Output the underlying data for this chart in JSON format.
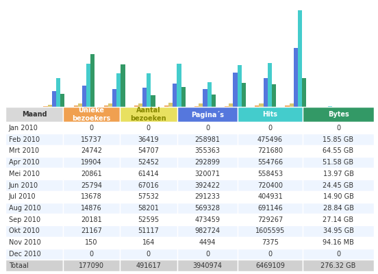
{
  "months_short": [
    "Jan",
    "Feb",
    "Mrt",
    "Apr",
    "Mei",
    "Jun",
    "Jul",
    "Aug",
    "Sep",
    "Okt",
    "Nov",
    "Dec"
  ],
  "unieke_bezoekers": [
    0,
    15737,
    24742,
    19904,
    20861,
    25794,
    13678,
    14876,
    20181,
    21167,
    150,
    0
  ],
  "aantal_bezoeken": [
    0,
    36419,
    54707,
    52452,
    61414,
    67016,
    57532,
    58201,
    52595,
    51117,
    164,
    0
  ],
  "paginas": [
    0,
    258981,
    355363,
    292899,
    320071,
    392422,
    291233,
    569328,
    473459,
    982724,
    4494,
    0
  ],
  "hits": [
    0,
    475496,
    721680,
    554766,
    558453,
    720400,
    404931,
    691146,
    729267,
    1605595,
    7375,
    0
  ],
  "bytes_gb": [
    0,
    15.85,
    64.55,
    51.58,
    13.97,
    24.45,
    14.9,
    28.84,
    27.14,
    34.95,
    0.09416,
    0
  ],
  "bytes_max_gb": 64.55,
  "table_rows": [
    [
      "Jan 2010",
      "0",
      "0",
      "0",
      "0",
      "0"
    ],
    [
      "Feb 2010",
      "15737",
      "36419",
      "258981",
      "475496",
      "15.85 GB"
    ],
    [
      "Mrt 2010",
      "24742",
      "54707",
      "355363",
      "721680",
      "64.55 GB"
    ],
    [
      "Apr 2010",
      "19904",
      "52452",
      "292899",
      "554766",
      "51.58 GB"
    ],
    [
      "Mei 2010",
      "20861",
      "61414",
      "320071",
      "558453",
      "13.97 GB"
    ],
    [
      "Jun 2010",
      "25794",
      "67016",
      "392422",
      "720400",
      "24.45 GB"
    ],
    [
      "Jul 2010",
      "13678",
      "57532",
      "291233",
      "404931",
      "14.90 GB"
    ],
    [
      "Aug 2010",
      "14876",
      "58201",
      "569328",
      "691146",
      "28.84 GB"
    ],
    [
      "Sep 2010",
      "20181",
      "52595",
      "473459",
      "729267",
      "27.14 GB"
    ],
    [
      "Okt 2010",
      "21167",
      "51117",
      "982724",
      "1605595",
      "34.95 GB"
    ],
    [
      "Nov 2010",
      "150",
      "164",
      "4494",
      "7375",
      "94.16 MB"
    ],
    [
      "Dec 2010",
      "0",
      "0",
      "0",
      "0",
      "0"
    ]
  ],
  "totaal_row": [
    "Totaal",
    "177090",
    "491617",
    "3940974",
    "6469109",
    "276.32 GB"
  ],
  "col_headers": [
    "Maand",
    "Unieke\nbezoekers",
    "Aantal\nbezoeken",
    "Pagina´s",
    "Hits",
    "Bytes"
  ],
  "header_colors": [
    "#d8d8d8",
    "#f0a050",
    "#e8e060",
    "#5577dd",
    "#44cccc",
    "#339966"
  ],
  "header_fg": [
    "#333333",
    "#ffffff",
    "#888800",
    "#ffffff",
    "#ffffff",
    "#ffffff"
  ],
  "bar_color_unieke": "#f0a050",
  "bar_color_aantal": "#d8c870",
  "bar_color_paginas": "#5577dd",
  "bar_color_hits": "#44cccc",
  "bar_color_bytes": "#339966",
  "bg_color": "#ffffff",
  "alt_row_color": "#eef5ff",
  "totaal_bg": "#d0d0d0",
  "border_color": "#ffffff"
}
